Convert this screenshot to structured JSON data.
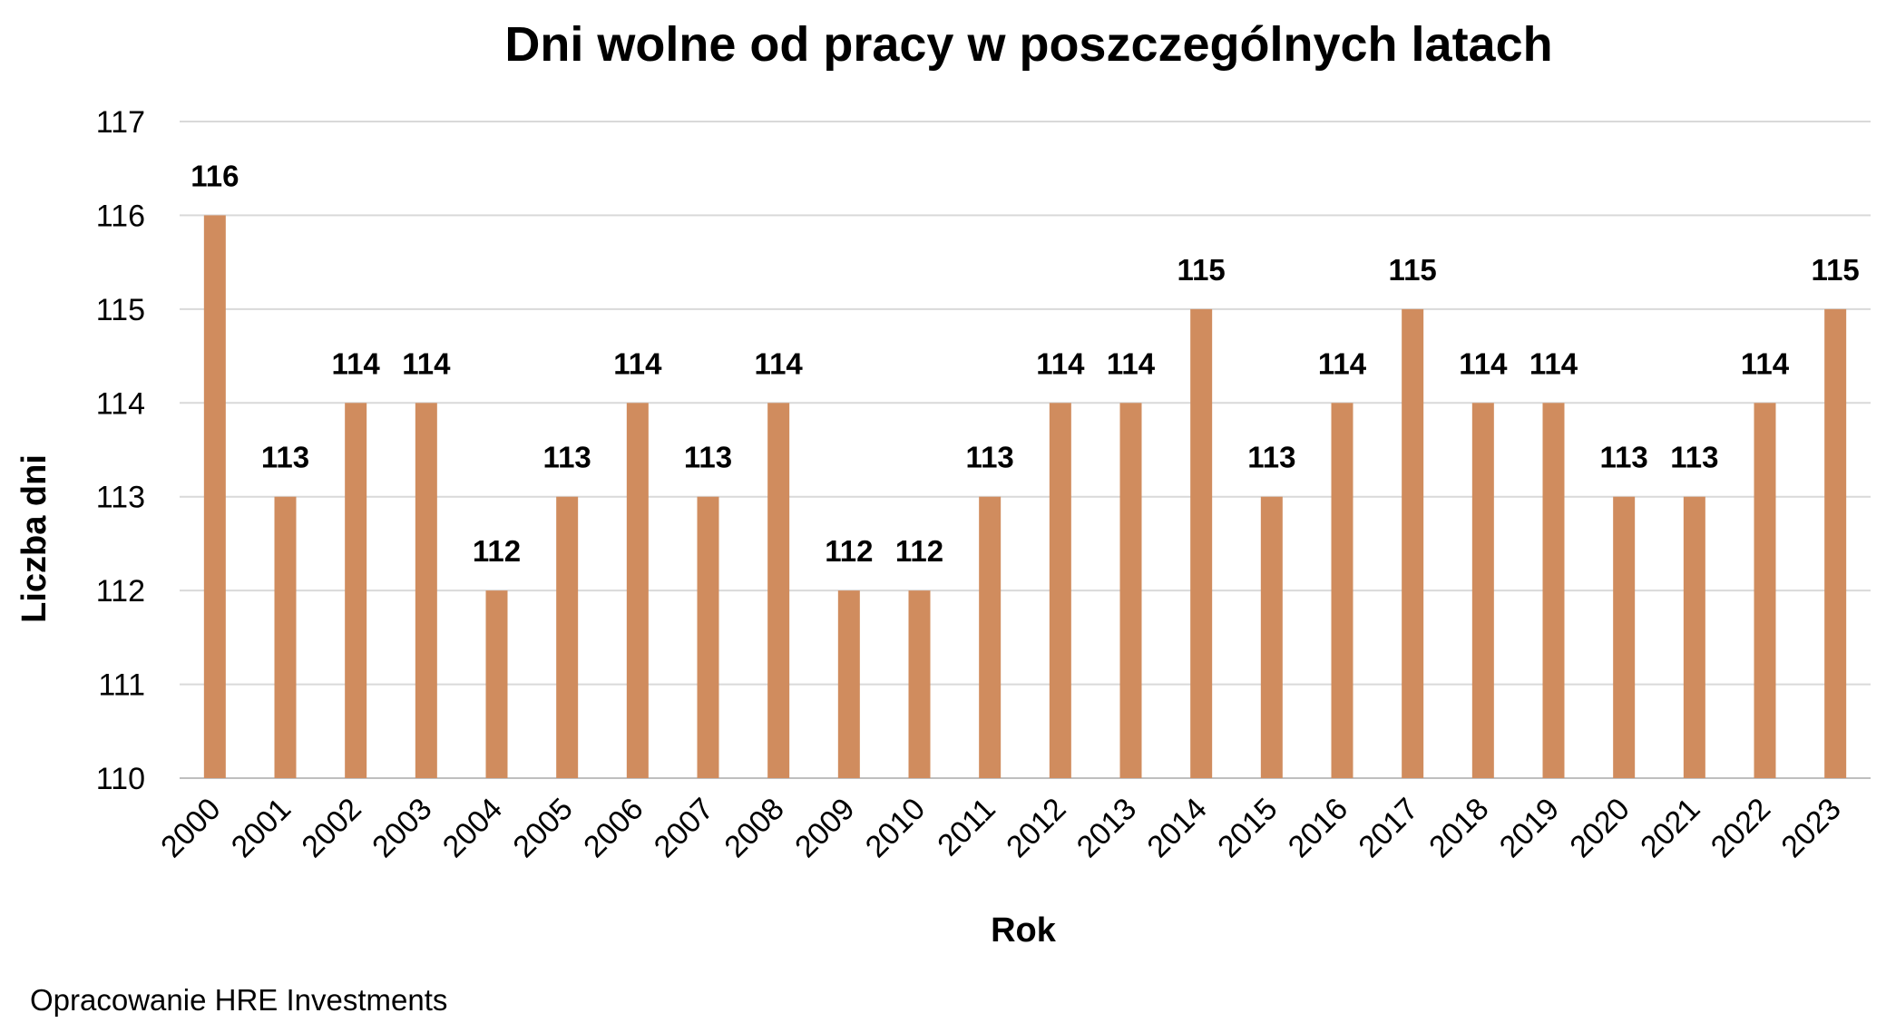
{
  "chart_data": {
    "type": "bar",
    "title": "Dni wolne od pracy w poszczególnych latach",
    "xlabel": "Rok",
    "ylabel": "Liczba dni",
    "ylim": [
      110,
      117
    ],
    "yticks": [
      "110",
      "111",
      "112",
      "113",
      "114",
      "115",
      "116",
      "117"
    ],
    "categories": [
      "2000",
      "2001",
      "2002",
      "2003",
      "2004",
      "2005",
      "2006",
      "2007",
      "2008",
      "2009",
      "2010",
      "2011",
      "2012",
      "2013",
      "2014",
      "2015",
      "2016",
      "2017",
      "2018",
      "2019",
      "2020",
      "2021",
      "2022",
      "2023"
    ],
    "values": [
      116,
      113,
      114,
      114,
      112,
      113,
      114,
      113,
      114,
      112,
      112,
      113,
      114,
      114,
      115,
      113,
      114,
      115,
      114,
      114,
      113,
      113,
      114,
      115
    ],
    "bar_color": "#D08C5E",
    "grid": true,
    "legend": "none",
    "data_labels": true
  },
  "source": "Opracowanie HRE Investments"
}
